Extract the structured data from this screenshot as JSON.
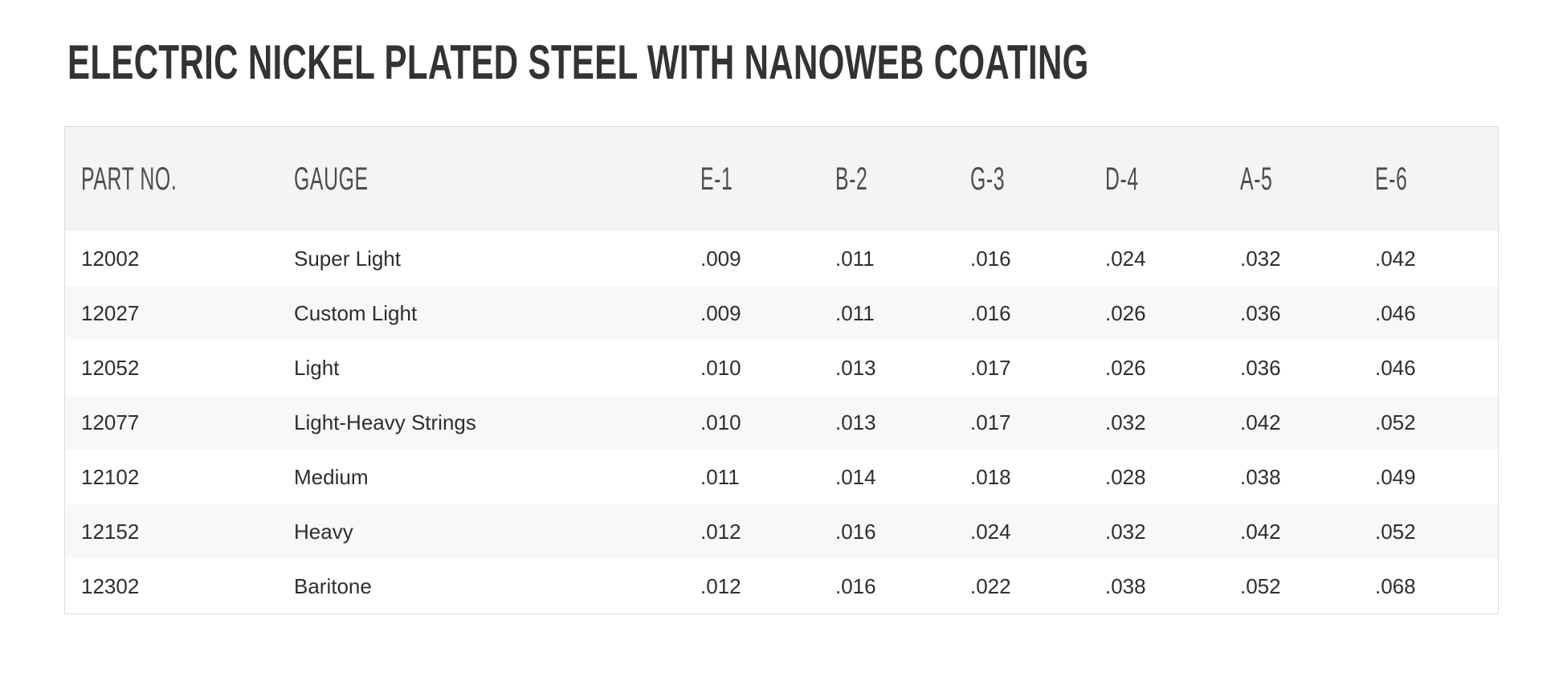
{
  "page": {
    "title": "ELECTRIC NICKEL PLATED STEEL WITH NANOWEB COATING"
  },
  "table": {
    "columns": [
      {
        "key": "part_no",
        "label": "PART NO."
      },
      {
        "key": "gauge",
        "label": "GAUGE"
      },
      {
        "key": "e1",
        "label": "E-1"
      },
      {
        "key": "b2",
        "label": "B-2"
      },
      {
        "key": "g3",
        "label": "G-3"
      },
      {
        "key": "d4",
        "label": "D-4"
      },
      {
        "key": "a5",
        "label": "A-5"
      },
      {
        "key": "e6",
        "label": "E-6"
      }
    ],
    "rows": [
      {
        "part_no": "12002",
        "gauge": "Super Light",
        "values": [
          ".009",
          ".011",
          ".016",
          ".024",
          ".032",
          ".042"
        ]
      },
      {
        "part_no": "12027",
        "gauge": "Custom Light",
        "values": [
          ".009",
          ".011",
          ".016",
          ".026",
          ".036",
          ".046"
        ]
      },
      {
        "part_no": "12052",
        "gauge": "Light",
        "values": [
          ".010",
          ".013",
          ".017",
          ".026",
          ".036",
          ".046"
        ]
      },
      {
        "part_no": "12077",
        "gauge": "Light-Heavy Strings",
        "values": [
          ".010",
          ".013",
          ".017",
          ".032",
          ".042",
          ".052"
        ]
      },
      {
        "part_no": "12102",
        "gauge": "Medium",
        "values": [
          ".011",
          ".014",
          ".018",
          ".028",
          ".038",
          ".049"
        ]
      },
      {
        "part_no": "12152",
        "gauge": "Heavy",
        "values": [
          ".012",
          ".016",
          ".024",
          ".032",
          ".042",
          ".052"
        ]
      },
      {
        "part_no": "12302",
        "gauge": "Baritone",
        "values": [
          ".012",
          ".016",
          ".022",
          ".038",
          ".052",
          ".068"
        ]
      }
    ]
  },
  "colors": {
    "title": "#333333",
    "header_text": "#4d4d4d",
    "body_text": "#2e2e2e",
    "header_bg": "#f4f4f4",
    "stripe_bg": "#f8f8f8",
    "border": "#dcdcdc",
    "page_bg": "#ffffff"
  }
}
